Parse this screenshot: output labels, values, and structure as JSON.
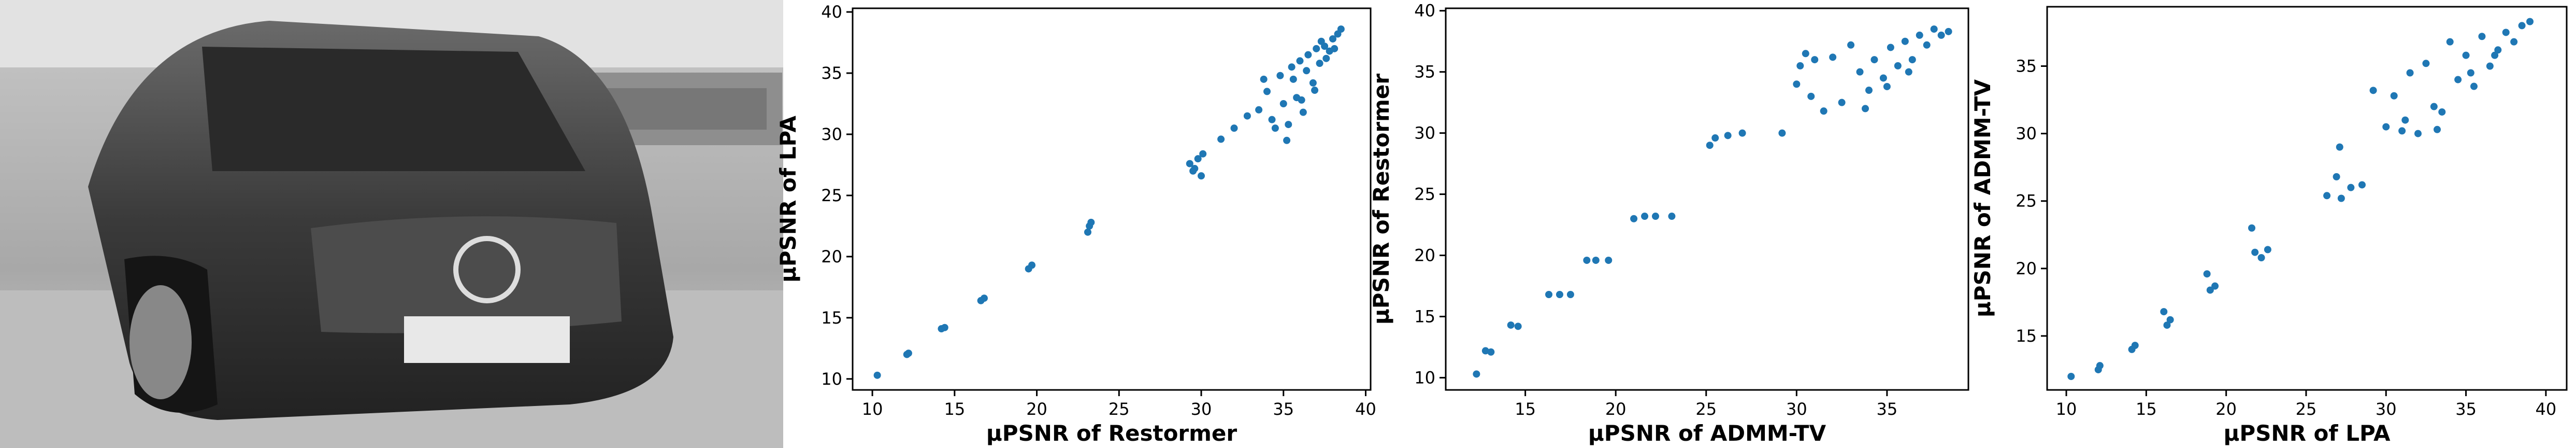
{
  "chart_data": [
    {
      "type": "scatter",
      "xlabel": "μPSNR of Restormer",
      "ylabel": "μPSNR of LPA",
      "color": "#1f77b4",
      "xlim": [
        8.8,
        40.3
      ],
      "ylim": [
        9.1,
        40.3
      ],
      "xticks": [
        10,
        15,
        20,
        25,
        30,
        35,
        40
      ],
      "yticks": [
        10,
        15,
        20,
        25,
        30,
        35,
        40
      ],
      "x": [
        10.3,
        12.1,
        12.2,
        14.2,
        14.4,
        16.6,
        16.8,
        19.5,
        19.7,
        23.1,
        23.2,
        23.3,
        29.3,
        29.6,
        29.8,
        30.0,
        30.1,
        29.5,
        31.2,
        32.0,
        32.8,
        33.5,
        34.0,
        34.3,
        34.8,
        35.0,
        35.3,
        35.5,
        35.8,
        36.0,
        36.2,
        36.5,
        36.8,
        37.0,
        37.2,
        37.5,
        37.8,
        38.0,
        38.3,
        38.5,
        34.5,
        35.2,
        36.1,
        36.9,
        37.6,
        35.6,
        36.4,
        37.3,
        38.1,
        33.8
      ],
      "values": [
        10.3,
        12.0,
        12.1,
        14.1,
        14.2,
        16.4,
        16.6,
        19.0,
        19.3,
        22.0,
        22.5,
        22.8,
        27.6,
        27.2,
        28.0,
        26.6,
        28.4,
        27.0,
        29.6,
        30.5,
        31.5,
        32.0,
        33.5,
        31.2,
        34.8,
        32.5,
        30.8,
        35.5,
        33.0,
        36.0,
        31.8,
        36.5,
        34.2,
        37.0,
        35.8,
        37.2,
        36.8,
        37.8,
        38.2,
        38.6,
        30.5,
        29.5,
        32.8,
        33.6,
        36.2,
        34.5,
        35.2,
        37.6,
        37.0,
        34.5
      ]
    },
    {
      "type": "scatter",
      "xlabel": "μPSNR of ADMM-TV",
      "ylabel": "μPSNR of Restormer",
      "color": "#1f77b4",
      "xlim": [
        10.6,
        39.5
      ],
      "ylim": [
        9.0,
        40.2
      ],
      "xticks": [
        15,
        20,
        25,
        30,
        35
      ],
      "yticks": [
        10,
        15,
        20,
        25,
        30,
        35,
        40
      ],
      "x": [
        12.3,
        12.8,
        13.1,
        14.2,
        14.6,
        16.3,
        16.9,
        17.5,
        18.4,
        18.9,
        19.6,
        21.0,
        21.6,
        22.2,
        23.1,
        25.2,
        25.5,
        26.2,
        27.0,
        29.2,
        30.0,
        30.2,
        30.5,
        30.8,
        31.0,
        31.5,
        32.0,
        32.5,
        33.0,
        33.5,
        34.0,
        34.3,
        34.8,
        35.2,
        35.6,
        36.0,
        36.4,
        36.8,
        37.2,
        37.6,
        38.0,
        38.4,
        33.8,
        35.0,
        36.2
      ],
      "values": [
        10.3,
        12.2,
        12.1,
        14.3,
        14.2,
        16.8,
        16.8,
        16.8,
        19.6,
        19.6,
        19.6,
        23.0,
        23.2,
        23.2,
        23.2,
        29.0,
        29.6,
        29.8,
        30.0,
        30.0,
        34.0,
        35.5,
        36.5,
        33.0,
        36.0,
        31.8,
        36.2,
        32.5,
        37.2,
        35.0,
        33.5,
        36.0,
        34.5,
        37.0,
        35.5,
        37.5,
        36.0,
        38.0,
        37.2,
        38.5,
        38.0,
        38.3,
        32.0,
        33.8,
        35.0
      ]
    },
    {
      "type": "scatter",
      "xlabel": "μPSNR of LPA",
      "ylabel": "μPSNR of ADMM-TV",
      "color": "#1f77b4",
      "xlim": [
        8.8,
        41.3
      ],
      "ylim": [
        11.0,
        39.4
      ],
      "xticks": [
        10,
        15,
        20,
        25,
        30,
        35,
        40
      ],
      "yticks": [
        15,
        20,
        25,
        30,
        35
      ],
      "x": [
        10.3,
        12.0,
        12.1,
        14.1,
        14.3,
        16.3,
        16.5,
        16.1,
        19.0,
        19.3,
        18.8,
        21.8,
        22.2,
        22.6,
        21.6,
        26.3,
        27.2,
        27.8,
        28.5,
        26.9,
        27.1,
        29.2,
        30.0,
        30.5,
        31.0,
        31.5,
        32.0,
        32.5,
        33.0,
        33.5,
        34.0,
        34.5,
        35.0,
        35.5,
        36.0,
        36.5,
        37.0,
        37.5,
        38.0,
        38.5,
        39.0,
        31.2,
        33.2,
        35.3,
        36.8
      ],
      "values": [
        12.0,
        12.5,
        12.8,
        14.0,
        14.3,
        15.8,
        16.2,
        16.8,
        18.4,
        18.7,
        19.6,
        21.2,
        20.8,
        21.4,
        23.0,
        25.4,
        25.2,
        26.0,
        26.2,
        26.8,
        29.0,
        33.2,
        30.5,
        32.8,
        30.2,
        34.5,
        30.0,
        35.2,
        32.0,
        31.6,
        36.8,
        34.0,
        35.8,
        33.5,
        37.2,
        35.0,
        36.2,
        37.5,
        36.8,
        38.0,
        38.3,
        31.0,
        30.3,
        34.5,
        35.8
      ]
    }
  ]
}
